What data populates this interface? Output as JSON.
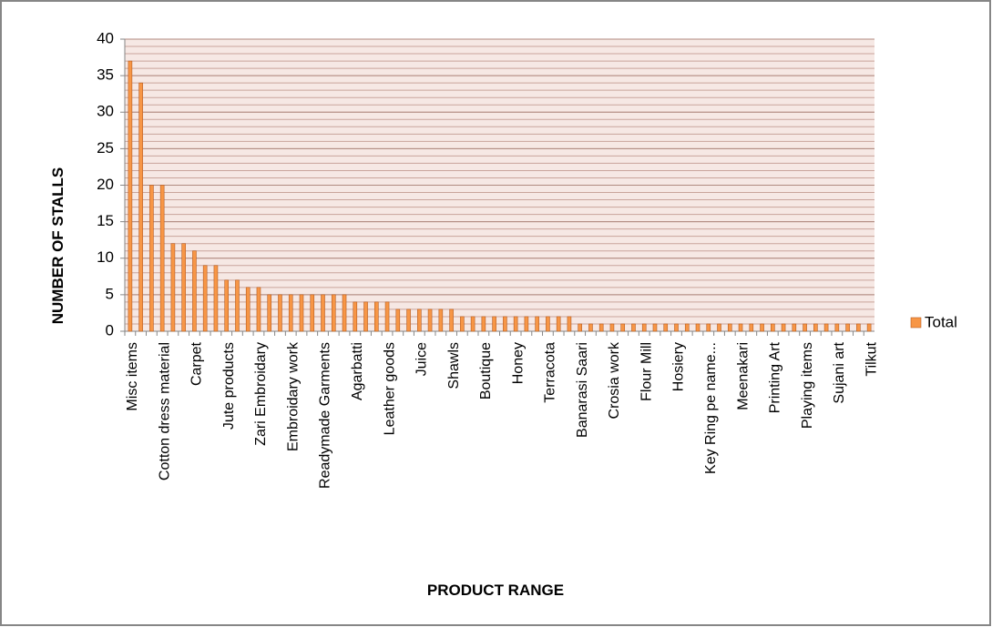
{
  "chart_data": {
    "type": "bar",
    "x_label": "PRODUCT RANGE",
    "y_label": "NUMBER OF STALLS",
    "categories": [
      "Misc items",
      null,
      null,
      "Cotton dress material",
      null,
      null,
      "Carpet",
      null,
      null,
      "Jute products",
      null,
      null,
      "Zari Embroidary",
      null,
      null,
      "Embroidary work",
      null,
      null,
      "Readymade Garments",
      null,
      null,
      "Agarbatti",
      null,
      null,
      "Leather goods",
      null,
      null,
      "Juice",
      null,
      null,
      "Shawls",
      null,
      null,
      "Boutique",
      null,
      null,
      "Honey",
      null,
      null,
      "Terracota",
      null,
      null,
      "Banarasi Saari",
      null,
      null,
      "Crosia work",
      null,
      null,
      "Flour Mill",
      null,
      null,
      "Hosiery",
      null,
      null,
      "Key Ring pe name...",
      null,
      null,
      "Meenakari",
      null,
      null,
      "Printing Art",
      null,
      null,
      "Playing items",
      null,
      null,
      "Sujani art",
      null,
      null,
      "Tilkut"
    ],
    "series": [
      {
        "name": "Total",
        "color": "#f79646",
        "values": [
          37,
          34,
          20,
          20,
          12,
          12,
          11,
          9,
          9,
          7,
          7,
          6,
          6,
          5,
          5,
          5,
          5,
          5,
          5,
          5,
          5,
          4,
          4,
          4,
          4,
          3,
          3,
          3,
          3,
          3,
          3,
          2,
          2,
          2,
          2,
          2,
          2,
          2,
          2,
          2,
          2,
          2,
          1,
          1,
          1,
          1,
          1,
          1,
          1,
          1,
          1,
          1,
          1,
          1,
          1,
          1,
          1,
          1,
          1,
          1,
          1,
          1,
          1,
          1,
          1,
          1,
          1,
          1,
          1,
          1
        ]
      }
    ],
    "ylim": [
      0,
      40
    ],
    "yticks": [
      0,
      5,
      10,
      15,
      20,
      25,
      30,
      35,
      40
    ],
    "grid": true,
    "legend": "right"
  }
}
